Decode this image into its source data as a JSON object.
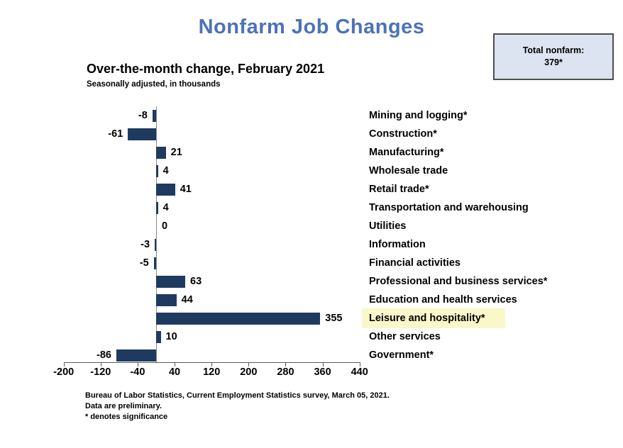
{
  "page_title": "Nonfarm Job Changes",
  "total_box": {
    "line1": "Total nonfarm:",
    "line2": "379*"
  },
  "chart_header": {
    "title": "Over-the-month change, February 2021",
    "subtitle": "Seasonally adjusted, in thousands"
  },
  "chart_data": {
    "type": "bar",
    "orientation": "horizontal",
    "title": "Over-the-month change, February 2021",
    "subtitle": "Seasonally adjusted, in thousands",
    "units": "thousands, seasonally adjusted",
    "categories": [
      "Mining and logging*",
      "Construction*",
      "Manufacturing*",
      "Wholesale trade",
      "Retail trade*",
      "Transportation and warehousing",
      "Utilities",
      "Information",
      "Financial activities",
      "Professional and business services*",
      "Education and health services",
      "Leisure and hospitality*",
      "Other services",
      "Government*"
    ],
    "values": [
      -8,
      -61,
      21,
      4,
      41,
      4,
      0,
      -3,
      -5,
      63,
      44,
      355,
      10,
      -86
    ],
    "highlighted_index": 11,
    "highlighted_category": "Leisure and hospitality*",
    "x_ticks": [
      -200,
      -120,
      -40,
      40,
      120,
      200,
      280,
      360,
      440
    ],
    "xlim": [
      -200,
      440
    ],
    "grid": false,
    "legend": false
  },
  "footer": {
    "lines": [
      "Bureau of Labor Statistics, Current Employment Statistics survey, March 05, 2021.",
      "Data are preliminary.",
      "* denotes significance"
    ]
  },
  "colors": {
    "title_blue": "#4C72B8",
    "bar_navy": "#1F3A5F",
    "highlight_yellow": "#F8F8C9",
    "total_box_bg": "#DBE4F0",
    "total_box_border": "#4D4D4D",
    "axis_gray": "#8A8A8A",
    "axis_dark": "#5A5A5A"
  }
}
